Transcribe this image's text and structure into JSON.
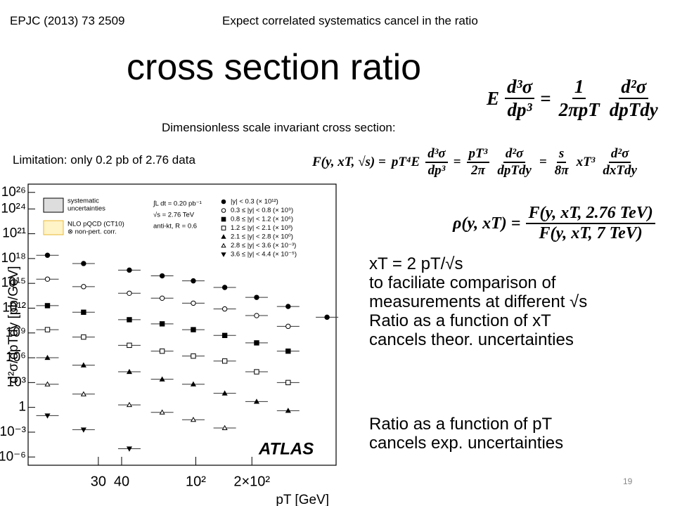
{
  "header": {
    "reference": "EPJC (2013) 73 2509",
    "note": "Expect correlated systematics cancel in the ratio",
    "title": "cross section ratio"
  },
  "subtitle": "Dimensionless scale invariant cross section:",
  "limitation": "Limitation: only 0.2 pb of 2.76 data",
  "equations": [
    [
      "E",
      {
        "num": "d³σ",
        "den": "dp³"
      },
      "=",
      {
        "num": "1",
        "den": "2πpT"
      },
      {
        "num": "d²σ",
        "den": "dpTdy"
      }
    ],
    [
      "F(y, xT, √s) =",
      "pT⁴E",
      {
        "num": "d³σ",
        "den": "dp³"
      },
      "=",
      {
        "num": "pT³",
        "den": "2π"
      },
      {
        "num": "d²σ",
        "den": "dpTdy"
      },
      "=",
      {
        "num": "s",
        "den": "8π"
      },
      "xT³",
      {
        "num": "d²σ",
        "den": "dxTdy"
      }
    ],
    [
      "ρ(y, xT) =",
      {
        "num": "F(y, xT, 2.76 TeV)",
        "den": "F(y, xT, 7 TeV)"
      }
    ]
  ],
  "bullets": [
    [
      "xT = 2 pT/√s",
      "to faciliate comparison of",
      "measurements at different √s",
      "Ratio as a function of xT",
      "cancels theor. uncertainties"
    ],
    [
      "Ratio as a function of pT",
      "cancels exp. uncertainties"
    ]
  ],
  "slide_number": 19,
  "chart_data": {
    "type": "scatter",
    "x_label": "pT [GeV]",
    "y_label": "d²σ/dpTdy [pb/GeV]",
    "log_x": true,
    "log_y": true,
    "grid": false,
    "xlim": [
      12.6,
      566
    ],
    "ylim": [
      1e-07,
      1e+27
    ],
    "xticks": [
      30,
      40,
      {
        "value": 100,
        "label": "10²"
      },
      {
        "value": 200,
        "label": "2×10²"
      }
    ],
    "yticks": [
      {
        "value": 1e+26,
        "label": "10²⁶"
      },
      {
        "value": 1e+24,
        "label": "10²⁴"
      },
      {
        "value": 1e+21,
        "label": "10²¹"
      },
      {
        "value": 1e+18,
        "label": "10¹⁸"
      },
      {
        "value": 1000000000000000.0,
        "label": "10¹⁵"
      },
      {
        "value": 1000000000000.0,
        "label": "10¹²"
      },
      {
        "value": 1000000000.0,
        "label": "10⁹"
      },
      {
        "value": 1000000.0,
        "label": "10⁶"
      },
      {
        "value": 1000,
        "label": "10³"
      },
      1,
      {
        "value": 0.001,
        "label": "10⁻³"
      },
      {
        "value": 1e-06,
        "label": "10⁻⁶"
      }
    ],
    "x": [
      16,
      25,
      44,
      66,
      97,
      143,
      212,
      313,
      506
    ],
    "series": [
      {
        "name": "|y| < 0.3 (× 10¹²)",
        "color": "#000000",
        "marker": "circle",
        "filled": true,
        "values": [
          2.5e+18,
          2.5e+17,
          4e+16,
          8000000000000000.0,
          2000000000000000.0,
          320000000000000.0,
          20000000000000.0,
          1600000000000.0,
          80000000000.0
        ]
      },
      {
        "name": "0.3 ≤ |y| < 0.8 (× 10⁹)",
        "color": "#000000",
        "marker": "circle",
        "filled": false,
        "values": [
          3200000000000000.0,
          400000000000000.0,
          63000000000000.0,
          16000000000000.0,
          4000000000000.0,
          800000000000.0,
          126000000000.0,
          6300000000.0,
          null
        ]
      },
      {
        "name": "0.8 ≤ |y| < 1.2 (× 10⁶)",
        "color": "#000000",
        "marker": "square",
        "filled": true,
        "values": [
          2000000000000.0,
          320000000000.0,
          40000000000.0,
          12600000000.0,
          2500000000.0,
          500000000.0,
          63000000.0,
          6300000.0,
          null
        ]
      },
      {
        "name": "1.2 ≤ |y| < 2.1 (× 10³)",
        "color": "#000000",
        "marker": "square",
        "filled": false,
        "values": [
          2500000000.0,
          320000000.0,
          32000000.0,
          6300000.0,
          1600000.0,
          400000.0,
          20000.0,
          1000,
          null
        ]
      },
      {
        "name": "2.1 ≤ |y| < 2.8 (× 10⁰)",
        "color": "#000000",
        "marker": "triangle",
        "filled": true,
        "values": [
          1000000.0,
          126000.0,
          20000.0,
          2500,
          630,
          50,
          5,
          0.4,
          null
        ]
      },
      {
        "name": "2.8 ≤ |y| < 3.6 (× 10⁻³)",
        "color": "#000000",
        "marker": "triangle",
        "filled": false,
        "values": [
          630,
          40,
          2,
          0.25,
          0.032,
          0.0032,
          null,
          null,
          null
        ]
      },
      {
        "name": "3.6 ≤ |y| < 4.4 (× 10⁻⁵)",
        "color": "#000000",
        "marker": "triangle-down",
        "filled": true,
        "values": [
          0.1,
          0.002,
          1e-05,
          null,
          null,
          null,
          null,
          null,
          null
        ]
      }
    ],
    "annotations": [
      "systematic",
      "uncertainties",
      "NLO pQCD (CT10)",
      "⊗ non-pert. corr.",
      "∫L dt = 0.20 pb⁻¹",
      "√s = 2.76 TeV",
      "anti-kt, R = 0.6",
      "ATLAS"
    ]
  }
}
